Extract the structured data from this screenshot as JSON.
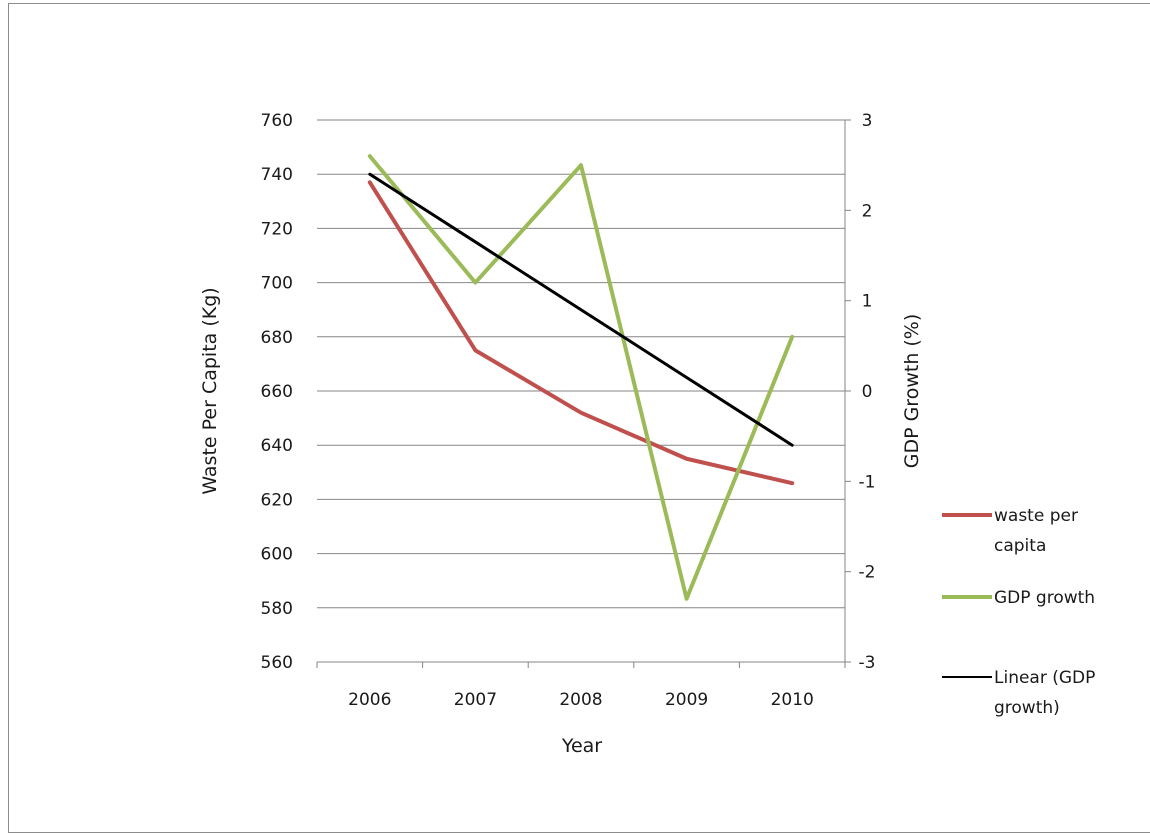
{
  "chart_data": {
    "type": "line",
    "categories": [
      "2006",
      "2007",
      "2008",
      "2009",
      "2010"
    ],
    "xlabel": "Year",
    "ylabel": "Waste Per Capita (Kg)",
    "y2label": "GDP Growth (%)",
    "ylim": [
      560,
      760
    ],
    "y_ticks": [
      "760",
      "740",
      "720",
      "700",
      "680",
      "660",
      "640",
      "620",
      "600",
      "580",
      "560"
    ],
    "y2lim": [
      -3,
      3
    ],
    "y2_ticks": [
      "3",
      "2",
      "1",
      "0",
      "-1",
      "-2",
      "-3"
    ],
    "grid": "horizontal",
    "legend_position": "right",
    "series": [
      {
        "name": "waste per capita",
        "axis": "left",
        "color": "#c0504d",
        "values": [
          737,
          675,
          652,
          635,
          626
        ]
      },
      {
        "name": "GDP growth",
        "axis": "right",
        "color": "#9bbb59",
        "values": [
          2.6,
          1.2,
          2.5,
          -2.3,
          0.6
        ]
      },
      {
        "name": "Linear (GDP growth)",
        "axis": "right",
        "color": "#000000",
        "values": [
          2.4,
          1.65,
          0.9,
          0.15,
          -0.6
        ]
      }
    ],
    "legend": [
      {
        "line1": "waste per",
        "line2": "capita"
      },
      {
        "line1": "GDP growth",
        "line2": ""
      },
      {
        "line1": "Linear (GDP",
        "line2": "growth)"
      }
    ]
  }
}
